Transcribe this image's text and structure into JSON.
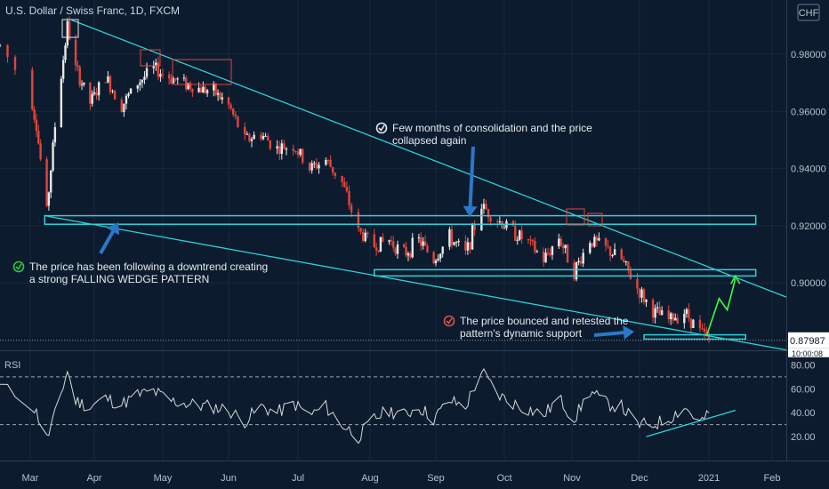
{
  "title": "U.S. Dollar / Swiss Franc, 1D, FXCM",
  "currency": "CHF",
  "price_label": "0.87987",
  "countdown_label": "10:00:08",
  "indicator_label": "RSI",
  "annotations": [
    {
      "text": [
        "Few months of consolidation and the price",
        "collapsed again"
      ],
      "icon": "check-circle-icon",
      "color": "#e6e9ee"
    },
    {
      "text": [
        "The price has been following a downtrend creating",
        "a strong FALLING WEDGE PATTERN"
      ],
      "icon": "check-circle-icon",
      "color": "#27c93f"
    },
    {
      "text": [
        "The price bounced and retested the",
        "pattern's dynamic support"
      ],
      "icon": "check-circle-icon",
      "color": "#e0504a"
    }
  ],
  "colors": {
    "background": "#0c1c2e",
    "up_candle": "#e8e8e8",
    "down_candle": "#e2453c",
    "trendline": "#2fd0d8",
    "box": "#e2453c",
    "arrow": "#2a78c9",
    "projection": "#3bff3b",
    "rsi_line": "#d8d8d8"
  },
  "chart_data": [
    {
      "type": "candlestick",
      "title": "U.S. Dollar / Swiss Franc, 1D, FXCM",
      "x_ticks": [
        "Mar",
        "Apr",
        "May",
        "Jun",
        "Jul",
        "Aug",
        "Sep",
        "Oct",
        "Nov",
        "Dec",
        "2021",
        "Feb"
      ],
      "y_ticks": [
        0.98,
        0.96,
        0.94,
        0.92,
        0.9
      ],
      "y_tick_labels": [
        "0.98000",
        "0.96000",
        "0.94000",
        "0.92000",
        "0.90000"
      ],
      "ylim": [
        0.877,
        0.999
      ],
      "xlim": [
        "2020-02-26",
        "2021-02-14"
      ],
      "last_price": 0.87987,
      "close_path": [
        [
          "2020-02-26",
          0.983
        ],
        [
          "2020-03-04",
          0.955
        ],
        [
          "2020-03-09",
          0.925
        ],
        [
          "2020-03-13",
          0.955
        ],
        [
          "2020-03-19",
          0.99
        ],
        [
          "2020-03-23",
          0.975
        ],
        [
          "2020-03-30",
          0.963
        ],
        [
          "2020-04-06",
          0.972
        ],
        [
          "2020-04-13",
          0.962
        ],
        [
          "2020-04-20",
          0.97
        ],
        [
          "2020-04-27",
          0.975
        ],
        [
          "2020-05-04",
          0.972
        ],
        [
          "2020-05-11",
          0.97
        ],
        [
          "2020-05-18",
          0.968
        ],
        [
          "2020-05-25",
          0.967
        ],
        [
          "2020-06-01",
          0.962
        ],
        [
          "2020-06-08",
          0.95
        ],
        [
          "2020-06-15",
          0.952
        ],
        [
          "2020-06-22",
          0.947
        ],
        [
          "2020-06-29",
          0.948
        ],
        [
          "2020-07-06",
          0.94
        ],
        [
          "2020-07-13",
          0.943
        ],
        [
          "2020-07-20",
          0.935
        ],
        [
          "2020-07-27",
          0.918
        ],
        [
          "2020-08-03",
          0.913
        ],
        [
          "2020-08-10",
          0.915
        ],
        [
          "2020-08-17",
          0.91
        ],
        [
          "2020-08-24",
          0.915
        ],
        [
          "2020-08-31",
          0.908
        ],
        [
          "2020-09-07",
          0.916
        ],
        [
          "2020-09-14",
          0.91
        ],
        [
          "2020-09-21",
          0.927
        ],
        [
          "2020-09-28",
          0.922
        ],
        [
          "2020-10-05",
          0.918
        ],
        [
          "2020-10-12",
          0.914
        ],
        [
          "2020-10-19",
          0.908
        ],
        [
          "2020-10-26",
          0.916
        ],
        [
          "2020-11-02",
          0.904
        ],
        [
          "2020-11-09",
          0.915
        ],
        [
          "2020-11-16",
          0.912
        ],
        [
          "2020-11-23",
          0.908
        ],
        [
          "2020-11-30",
          0.898
        ],
        [
          "2020-12-07",
          0.89
        ],
        [
          "2020-12-14",
          0.887
        ],
        [
          "2020-12-21",
          0.89
        ],
        [
          "2020-12-28",
          0.883
        ],
        [
          "2021-01-01",
          0.87987
        ]
      ],
      "trendlines": [
        {
          "name": "wedge-resistance",
          "from": [
            "2020-03-21",
            0.992
          ],
          "to": [
            "2021-02-14",
            0.895
          ]
        },
        {
          "name": "wedge-support",
          "from": [
            "2020-03-08",
            0.9235
          ],
          "to": [
            "2021-02-14",
            0.8765
          ]
        }
      ],
      "zones": [
        {
          "from": "2020-03-08",
          "to": "2021-01-24",
          "ymin": 0.9205,
          "ymax": 0.9235
        },
        {
          "from": "2020-08-03",
          "to": "2021-01-24",
          "ymin": 0.9024,
          "ymax": 0.9046
        },
        {
          "from": "2020-12-03",
          "to": "2021-01-19",
          "ymin": 0.8803,
          "ymax": 0.8818
        }
      ],
      "projection": [
        [
          "2020-12-31",
          0.8815
        ],
        [
          "2021-01-06",
          0.8945
        ],
        [
          "2021-01-10",
          0.8905
        ],
        [
          "2021-01-14",
          0.9015
        ]
      ]
    },
    {
      "type": "line",
      "title": "RSI",
      "y_ticks": [
        80,
        60,
        40,
        20
      ],
      "y_tick_labels": [
        "80.00",
        "60.00",
        "40.00",
        "20.00"
      ],
      "ylim": [
        0,
        90
      ],
      "levels": [
        70,
        30
      ],
      "rsi_path": [
        [
          "2020-02-26",
          62
        ],
        [
          "2020-03-04",
          40
        ],
        [
          "2020-03-09",
          18
        ],
        [
          "2020-03-13",
          38
        ],
        [
          "2020-03-19",
          75
        ],
        [
          "2020-03-23",
          50
        ],
        [
          "2020-03-30",
          45
        ],
        [
          "2020-04-06",
          52
        ],
        [
          "2020-04-13",
          47
        ],
        [
          "2020-04-20",
          55
        ],
        [
          "2020-04-27",
          58
        ],
        [
          "2020-05-04",
          50
        ],
        [
          "2020-05-11",
          48
        ],
        [
          "2020-05-18",
          46
        ],
        [
          "2020-05-25",
          45
        ],
        [
          "2020-06-01",
          42
        ],
        [
          "2020-06-08",
          33
        ],
        [
          "2020-06-15",
          45
        ],
        [
          "2020-06-22",
          40
        ],
        [
          "2020-06-29",
          48
        ],
        [
          "2020-07-06",
          38
        ],
        [
          "2020-07-13",
          45
        ],
        [
          "2020-07-20",
          30
        ],
        [
          "2020-07-27",
          20
        ],
        [
          "2020-08-03",
          35
        ],
        [
          "2020-08-10",
          42
        ],
        [
          "2020-08-17",
          38
        ],
        [
          "2020-08-24",
          45
        ],
        [
          "2020-08-31",
          35
        ],
        [
          "2020-09-07",
          50
        ],
        [
          "2020-09-14",
          45
        ],
        [
          "2020-09-21",
          75
        ],
        [
          "2020-09-28",
          55
        ],
        [
          "2020-10-05",
          48
        ],
        [
          "2020-10-12",
          43
        ],
        [
          "2020-10-19",
          38
        ],
        [
          "2020-10-26",
          52
        ],
        [
          "2020-11-02",
          35
        ],
        [
          "2020-11-09",
          58
        ],
        [
          "2020-11-16",
          48
        ],
        [
          "2020-11-23",
          45
        ],
        [
          "2020-11-30",
          30
        ],
        [
          "2020-12-07",
          30
        ],
        [
          "2020-12-14",
          35
        ],
        [
          "2020-12-21",
          45
        ],
        [
          "2020-12-28",
          32
        ],
        [
          "2021-01-01",
          38
        ]
      ],
      "trendline": {
        "from": [
          "2020-12-04",
          20
        ],
        "to": [
          "2021-01-14",
          42
        ]
      }
    }
  ]
}
